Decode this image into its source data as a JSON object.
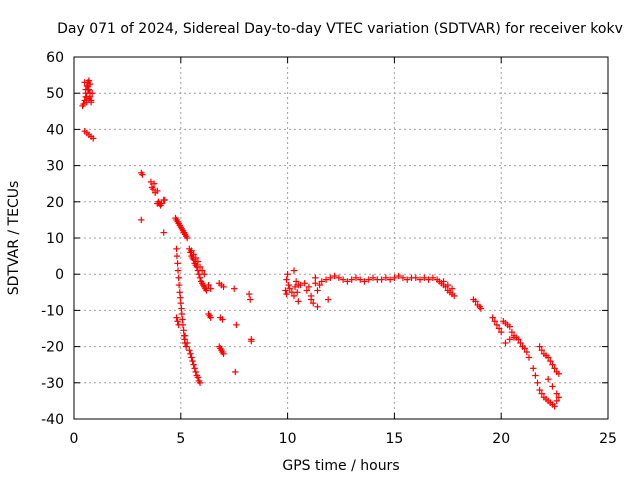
{
  "chart_data": {
    "type": "scatter",
    "title": "Day 071 of 2024, Sidereal Day-to-day VTEC variation (SDTVAR) for receiver kokv",
    "xlabel": "GPS time / hours",
    "ylabel": "SDTVAR / TECUs",
    "xlim": [
      0,
      25
    ],
    "ylim": [
      -40,
      60
    ],
    "xticks": [
      0,
      5,
      10,
      15,
      20,
      25
    ],
    "yticks": [
      -40,
      -30,
      -20,
      -10,
      0,
      10,
      20,
      30,
      40,
      50,
      60
    ],
    "grid": true,
    "marker": "plus",
    "color": "#ff0000",
    "series": [
      {
        "name": "SDTVAR",
        "x": [
          0.4,
          0.5,
          0.55,
          0.6,
          0.65,
          0.7,
          0.75,
          0.8,
          0.5,
          0.55,
          0.6,
          0.65,
          0.7,
          0.75,
          0.8,
          0.45,
          0.55,
          0.65,
          0.75,
          0.85,
          0.6,
          0.7,
          0.5,
          0.6,
          0.7,
          0.8,
          0.9,
          3.15,
          3.2,
          3.15,
          3.6,
          3.7,
          3.8,
          3.65,
          3.75,
          3.9,
          3.95,
          4.0,
          4.05,
          4.1,
          4.2,
          4.25,
          4.2,
          3.9,
          4.75,
          4.8,
          4.85,
          4.9,
          4.95,
          5.0,
          5.05,
          5.1,
          5.15,
          5.2,
          5.25,
          5.3,
          4.8,
          4.82,
          4.85,
          4.87,
          4.9,
          4.92,
          4.95,
          4.98,
          5.0,
          5.03,
          5.05,
          5.08,
          5.1,
          5.13,
          5.15,
          5.18,
          5.2,
          5.25,
          4.8,
          4.85,
          4.9,
          5.4,
          5.45,
          5.5,
          5.55,
          5.6,
          5.65,
          5.7,
          5.75,
          5.8,
          5.85,
          5.9,
          5.95,
          6.0,
          6.05,
          6.1,
          6.15,
          6.2,
          6.3,
          6.4,
          5.5,
          5.6,
          5.7,
          5.8,
          5.9,
          6.0,
          6.1,
          5.2,
          5.3,
          5.4,
          5.45,
          5.5,
          5.55,
          5.6,
          5.65,
          5.7,
          5.75,
          5.8,
          5.85,
          5.9,
          6.3,
          6.35,
          6.4,
          6.8,
          6.85,
          6.9,
          6.95,
          7.0,
          6.8,
          6.9,
          7.0,
          6.85,
          6.95,
          7.5,
          7.6,
          7.55,
          8.2,
          8.25,
          8.3,
          8.3,
          9.9,
          9.95,
          9.95,
          10.0,
          10.05,
          10.1,
          10.2,
          10.3,
          10.35,
          10.4,
          10.45,
          10.5,
          10.6,
          10.8,
          10.9,
          11.0,
          11.1,
          11.2,
          11.3,
          11.4,
          11.5,
          10.3,
          10.5,
          11.1,
          11.4,
          11.9,
          11.3,
          11.6,
          11.8,
          12.0,
          12.2,
          12.4,
          12.6,
          12.8,
          13.0,
          13.2,
          13.4,
          13.6,
          13.8,
          14.0,
          14.2,
          14.4,
          14.6,
          14.8,
          15.0,
          15.2,
          15.4,
          15.6,
          15.8,
          16.0,
          16.2,
          16.4,
          16.6,
          16.8,
          17.0,
          17.1,
          17.2,
          17.3,
          17.4,
          17.5,
          17.6,
          17.7,
          17.8,
          17.3,
          17.5,
          17.7,
          18.7,
          18.8,
          18.9,
          19.0,
          19.05,
          19.6,
          19.7,
          19.8,
          19.9,
          20.0,
          20.1,
          20.2,
          20.3,
          20.4,
          20.5,
          20.6,
          20.7,
          20.8,
          20.9,
          21.0,
          21.1,
          21.2,
          21.3,
          20.2,
          20.4,
          20.6,
          21.5,
          21.6,
          21.7,
          21.8,
          21.9,
          22.0,
          22.1,
          22.2,
          22.3,
          22.4,
          22.5,
          22.6,
          22.7,
          21.8,
          21.9,
          22.0,
          22.1,
          22.2,
          22.3,
          22.4,
          22.5,
          22.6,
          22.7,
          22.2,
          22.4,
          22.6
        ],
        "y": [
          46.5,
          48,
          50,
          52,
          53,
          51,
          49,
          47.5,
          53,
          51,
          49,
          52,
          53.5,
          50,
          48,
          47,
          49,
          51,
          52.5,
          50,
          47.5,
          48.5,
          39.5,
          39,
          38.5,
          38,
          37.5,
          28,
          27.5,
          15,
          25.5,
          23.5,
          22.5,
          24,
          25,
          23,
          20,
          19.5,
          19,
          19.5,
          20.5,
          20.5,
          11.5,
          19.5,
          15.5,
          15,
          14.5,
          14,
          13.5,
          13,
          12.5,
          12,
          11.5,
          11,
          10.5,
          10,
          7,
          5,
          3,
          1,
          -1,
          -3,
          -5,
          -6.5,
          -8,
          -9.5,
          -11,
          -12.5,
          -14,
          -15.5,
          -17,
          -18,
          -19,
          -20,
          -12,
          -13,
          -14,
          7,
          6,
          5,
          4.5,
          4,
          3,
          2.5,
          2,
          1,
          0,
          -1,
          -2,
          -2.5,
          -3,
          -3.5,
          -4,
          -4.5,
          -3,
          -4,
          6.5,
          5.5,
          4.5,
          3.5,
          2,
          1,
          0,
          -17,
          -19,
          -21,
          -22,
          -23,
          -24,
          -25,
          -26,
          -27,
          -28,
          -28.5,
          -29.5,
          -30,
          -11,
          -11.5,
          -12,
          -20,
          -20.5,
          -21,
          -21.5,
          -22,
          -2.5,
          -3,
          -3.5,
          -12,
          -12.5,
          -4,
          -14,
          -27,
          -5.5,
          -7,
          -18.5,
          -18,
          -4.5,
          -5.5,
          -1.5,
          0,
          -3,
          -4,
          -5,
          -6,
          -3.5,
          -2,
          -5,
          -7.5,
          -3,
          -2.5,
          -4.5,
          -3.5,
          -7,
          -8,
          -2.5,
          -4.5,
          -3,
          1,
          -3,
          -6,
          -9,
          -7,
          -1,
          -2,
          -1.5,
          -1,
          -0.5,
          -1,
          -1.5,
          -2,
          -1.5,
          -1,
          -1.5,
          -2,
          -1.5,
          -1,
          -1.5,
          -1.5,
          -1,
          -1.5,
          -1,
          -0.5,
          -1,
          -1.5,
          -1,
          -1,
          -1.5,
          -1,
          -1.5,
          -1,
          -1.5,
          -2,
          -2.5,
          -3,
          -3.5,
          -4.5,
          -5,
          -5.5,
          -6,
          -2,
          -3,
          -4,
          -7,
          -7.5,
          -8.5,
          -9,
          -9.5,
          -12,
          -13,
          -14,
          -15,
          -16,
          -13,
          -13.5,
          -14,
          -14.5,
          -16,
          -17,
          -17.5,
          -18,
          -19,
          -20,
          -20.5,
          -21.5,
          -23,
          -19,
          -18,
          -17.5,
          -26,
          -28,
          -30,
          -32,
          -33,
          -34,
          -34.5,
          -35,
          -35.5,
          -36,
          -36.5,
          -35,
          -34,
          -20,
          -21,
          -22,
          -22.5,
          -23,
          -24,
          -25,
          -26,
          -27,
          -27.5,
          -29,
          -31,
          -33
        ]
      }
    ]
  }
}
